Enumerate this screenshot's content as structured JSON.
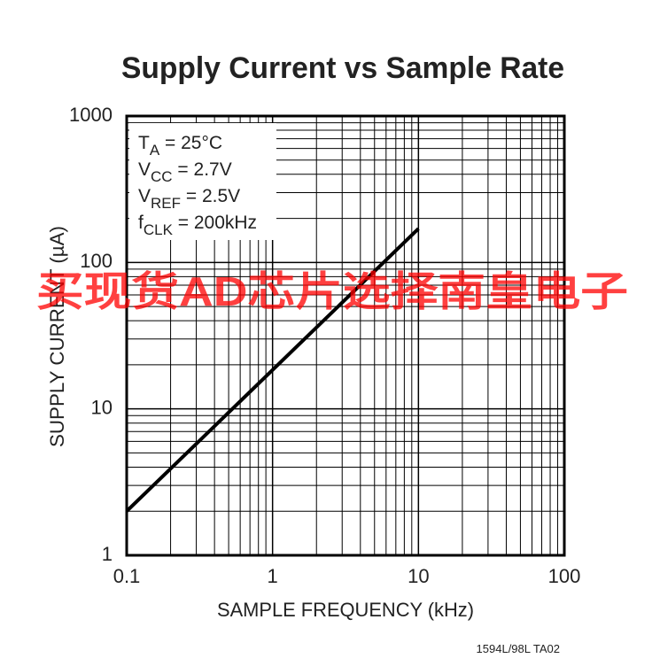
{
  "chart_data": {
    "type": "line",
    "title": "Supply Current vs Sample Rate",
    "xlabel": "SAMPLE FREQUENCY (kHz)",
    "ylabel": "SUPPLY CURRENT (µA)",
    "x": [
      0.1,
      10
    ],
    "series": [
      {
        "color": "#000000",
        "values": [
          2,
          170
        ]
      }
    ],
    "xscale": "log",
    "yscale": "log",
    "xlim": [
      0.1,
      100
    ],
    "ylim": [
      1,
      1000
    ],
    "xticks": [
      0.1,
      1,
      10,
      100
    ],
    "yticks": [
      1,
      10,
      100,
      1000
    ],
    "grid": true,
    "minor_grid": true,
    "annotations": [
      {
        "text": "T",
        "sub": "A",
        "tail": " = 25°C"
      },
      {
        "text": "V",
        "sub": "CC",
        "tail": " = 2.7V"
      },
      {
        "text": "V",
        "sub": "REF",
        "tail": " = 2.5V"
      },
      {
        "text": "f",
        "sub": "CLK",
        "tail": " = 200kHz"
      }
    ],
    "footnote": "1594L/98L TA02",
    "watermark": "买现货AD芯片选择南皇电子"
  }
}
